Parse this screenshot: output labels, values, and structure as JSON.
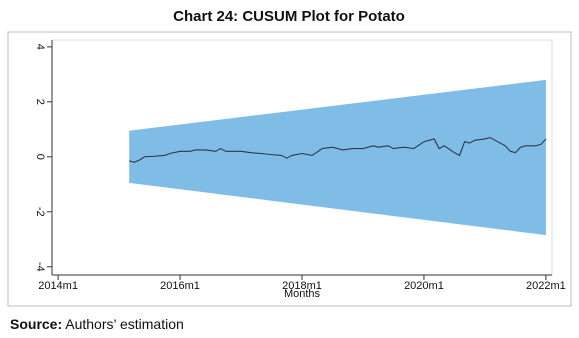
{
  "chart_data": {
    "type": "cusum",
    "title": "Chart 24: CUSUM Plot for Potato",
    "x_label": "Months",
    "source_label": "Source:",
    "source_text": "Authors’ estimation",
    "xlim": [
      646.8,
      745.2
    ],
    "xticks": [
      {
        "value": 648,
        "label": "2014m1"
      },
      {
        "value": 672,
        "label": "2016m1"
      },
      {
        "value": 696,
        "label": "2018m1"
      },
      {
        "value": 720,
        "label": "2020m1"
      },
      {
        "value": 744,
        "label": "2022m1"
      }
    ],
    "ylim": [
      -4.3,
      4.25
    ],
    "yticks": [
      -4,
      -2,
      0,
      2,
      4
    ],
    "band": {
      "x": [
        662,
        744
      ],
      "upper": [
        0.95,
        2.8
      ],
      "lower": [
        -0.95,
        -2.85
      ],
      "color": "#7fbce6"
    },
    "line": {
      "color": "#2f3a45",
      "x": [
        662,
        663,
        664,
        665,
        667,
        669,
        670,
        672,
        674,
        675,
        677,
        679,
        680,
        681,
        684,
        686,
        688,
        690,
        692,
        693,
        694,
        696,
        698,
        700,
        702,
        704,
        706,
        708,
        710,
        711,
        713,
        714,
        716,
        718,
        720,
        722,
        723,
        724,
        726,
        727,
        728,
        729,
        730,
        732,
        733,
        734,
        736,
        737,
        738,
        739,
        740,
        742,
        743,
        744
      ],
      "values": [
        -0.15,
        -0.2,
        -0.12,
        0.0,
        0.02,
        0.05,
        0.12,
        0.2,
        0.2,
        0.25,
        0.25,
        0.2,
        0.3,
        0.2,
        0.2,
        0.15,
        0.12,
        0.08,
        0.05,
        -0.05,
        0.05,
        0.12,
        0.05,
        0.3,
        0.35,
        0.25,
        0.3,
        0.3,
        0.4,
        0.35,
        0.4,
        0.3,
        0.35,
        0.3,
        0.55,
        0.65,
        0.3,
        0.4,
        0.15,
        0.05,
        0.55,
        0.5,
        0.6,
        0.65,
        0.7,
        0.6,
        0.4,
        0.2,
        0.15,
        0.35,
        0.4,
        0.4,
        0.45,
        0.65
      ]
    }
  }
}
